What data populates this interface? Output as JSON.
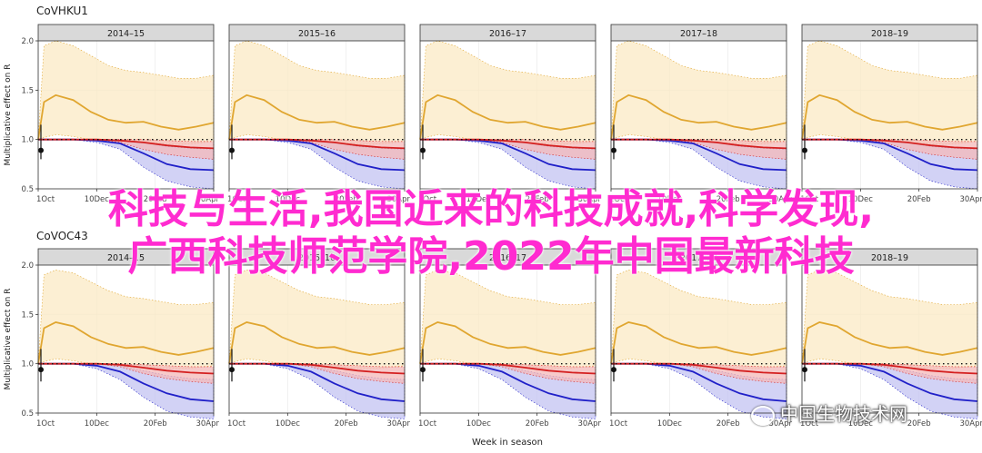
{
  "chart_data": [
    {
      "type": "line",
      "title": "CoVHKU1",
      "ylabel": "Multiplicative effect on R",
      "xlabel": "Week in season",
      "facets": [
        "2014–15",
        "2015–16",
        "2016–17",
        "2017–18",
        "2018–19"
      ],
      "ylim": [
        0.5,
        2.0
      ],
      "yticks": [
        0.5,
        1.0,
        1.5,
        2.0
      ],
      "ytick_labels": [
        "0.5",
        "1.0",
        "1.5",
        "2.0"
      ],
      "xtick_labels": [
        "1Oct",
        "10Dec",
        "20Feb",
        "30Apr"
      ],
      "xlim": [
        0,
        30
      ],
      "xticks": [
        0,
        10,
        20,
        30
      ],
      "reference_line": 1.0,
      "series": [
        {
          "color": "#e0a630",
          "band_color": "#fbe9c4",
          "x": [
            0,
            1,
            3,
            6,
            9,
            12,
            15,
            18,
            21,
            24,
            27,
            30
          ],
          "y": [
            1.0,
            1.38,
            1.45,
            1.4,
            1.28,
            1.2,
            1.17,
            1.18,
            1.13,
            1.1,
            1.13,
            1.17
          ],
          "upper": [
            1.0,
            1.95,
            2.0,
            1.95,
            1.85,
            1.75,
            1.7,
            1.68,
            1.65,
            1.62,
            1.62,
            1.65
          ],
          "lower": [
            1.0,
            1.02,
            1.05,
            1.03,
            1.0,
            0.98,
            0.97,
            0.97,
            0.96,
            0.95,
            0.96,
            0.98
          ]
        },
        {
          "color": "#2020c8",
          "band_color": "#c3c3f2",
          "x": [
            0,
            6,
            10,
            14,
            18,
            22,
            26,
            30
          ],
          "y": [
            1.0,
            1.0,
            0.99,
            0.96,
            0.86,
            0.75,
            0.7,
            0.69
          ],
          "upper": [
            1.0,
            1.0,
            1.0,
            1.0,
            0.97,
            0.93,
            0.91,
            0.9
          ],
          "lower": [
            1.0,
            1.0,
            0.97,
            0.9,
            0.72,
            0.58,
            0.52,
            0.5
          ]
        },
        {
          "color": "#d42020",
          "band_color": "#f4b8b8",
          "x": [
            0,
            10,
            14,
            18,
            22,
            26,
            30
          ],
          "y": [
            1.0,
            1.0,
            0.99,
            0.97,
            0.94,
            0.92,
            0.91
          ],
          "upper": [
            1.0,
            1.0,
            1.0,
            1.0,
            0.99,
            0.98,
            0.98
          ],
          "lower": [
            1.0,
            1.0,
            0.97,
            0.9,
            0.85,
            0.82,
            0.8
          ]
        }
      ],
      "point": {
        "x": 0,
        "y": 0.89,
        "lo": 0.8,
        "hi": 1.15
      }
    },
    {
      "type": "line",
      "title": "CoVOC43",
      "ylabel": "Multiplicative effect on R",
      "xlabel": "Week in season",
      "facets": [
        "2014–15",
        "2015–16",
        "2016–17",
        "2017–18",
        "2018–19"
      ],
      "ylim": [
        0.5,
        2.0
      ],
      "yticks": [
        0.5,
        1.0,
        1.5,
        2.0
      ],
      "ytick_labels": [
        "0.5",
        "1.0",
        "1.5",
        "2.0"
      ],
      "xtick_labels": [
        "1Oct",
        "10Dec",
        "20Feb",
        "30Apr"
      ],
      "xlim": [
        0,
        30
      ],
      "xticks": [
        0,
        10,
        20,
        30
      ],
      "reference_line": 1.0,
      "series": [
        {
          "color": "#e0a630",
          "band_color": "#fbe9c4",
          "x": [
            0,
            1,
            3,
            6,
            9,
            12,
            15,
            18,
            21,
            24,
            27,
            30
          ],
          "y": [
            1.0,
            1.36,
            1.42,
            1.38,
            1.27,
            1.2,
            1.16,
            1.17,
            1.12,
            1.09,
            1.12,
            1.16
          ],
          "upper": [
            1.0,
            1.9,
            1.95,
            1.92,
            1.83,
            1.74,
            1.68,
            1.66,
            1.63,
            1.6,
            1.6,
            1.62
          ],
          "lower": [
            1.0,
            1.02,
            1.05,
            1.03,
            1.0,
            0.98,
            0.97,
            0.97,
            0.96,
            0.95,
            0.96,
            0.98
          ]
        },
        {
          "color": "#2020c8",
          "band_color": "#c3c3f2",
          "x": [
            0,
            6,
            10,
            14,
            18,
            22,
            26,
            30
          ],
          "y": [
            1.0,
            1.0,
            0.98,
            0.92,
            0.8,
            0.7,
            0.64,
            0.62
          ],
          "upper": [
            1.0,
            1.0,
            1.0,
            0.98,
            0.93,
            0.88,
            0.85,
            0.84
          ],
          "lower": [
            1.0,
            1.0,
            0.95,
            0.84,
            0.66,
            0.52,
            0.46,
            0.44
          ]
        },
        {
          "color": "#d42020",
          "band_color": "#f4b8b8",
          "x": [
            0,
            10,
            14,
            18,
            22,
            26,
            30
          ],
          "y": [
            1.0,
            1.0,
            0.99,
            0.96,
            0.93,
            0.91,
            0.9
          ],
          "upper": [
            1.0,
            1.0,
            1.0,
            0.99,
            0.98,
            0.97,
            0.97
          ],
          "lower": [
            1.0,
            1.0,
            0.97,
            0.9,
            0.85,
            0.82,
            0.8
          ]
        }
      ],
      "point": {
        "x": 0,
        "y": 0.94,
        "lo": 0.82,
        "hi": 1.15
      }
    }
  ],
  "overlay": {
    "line1": "科技与生活,我国近来的科技成就,科学发现,",
    "line2": "广西科技师范学院,2022年中国最新科技"
  },
  "watermark": {
    "text": "中国生物技术网"
  }
}
